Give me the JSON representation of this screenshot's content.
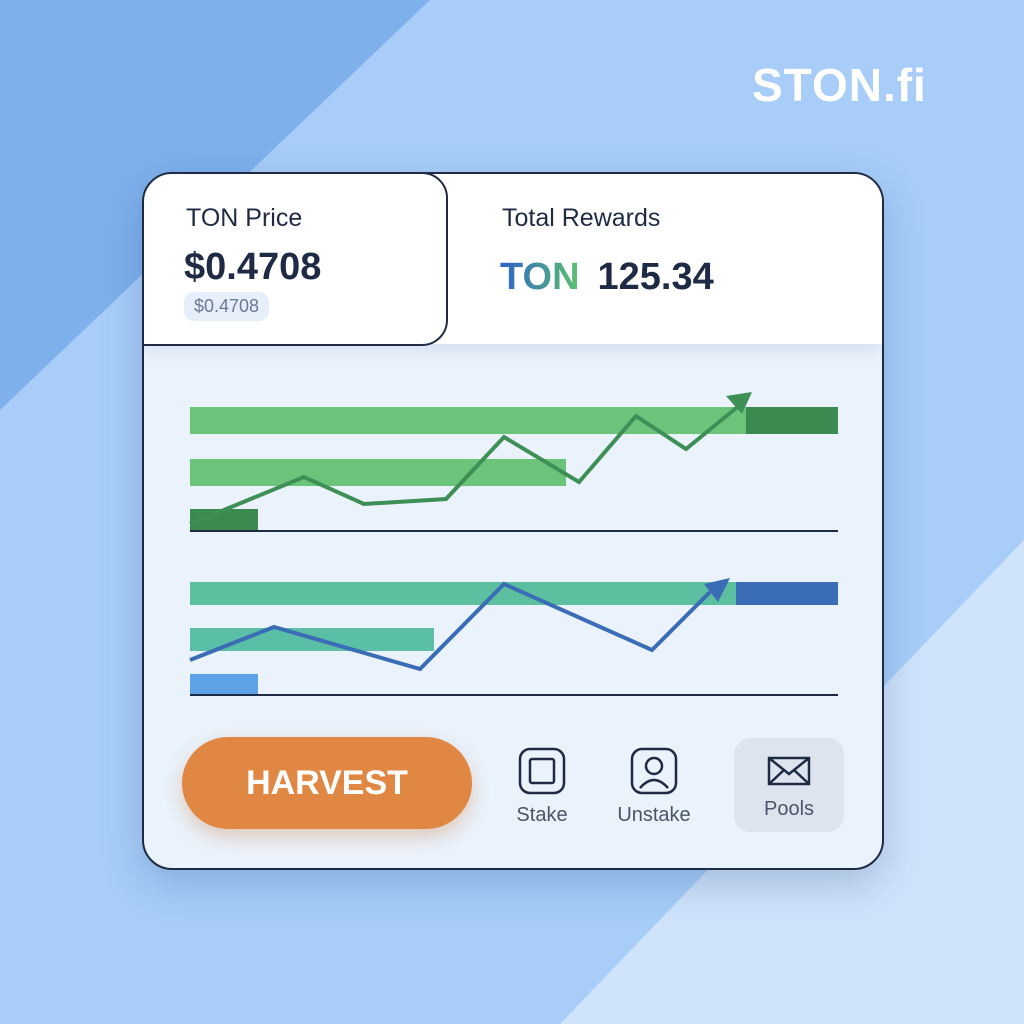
{
  "brand": "STON.fi",
  "price_card": {
    "label": "TON Price",
    "value": "$0.4708",
    "badge": "$0.4708"
  },
  "rewards_card": {
    "label": "Total Rewards",
    "token": "TON",
    "amount": "125.34"
  },
  "actions": {
    "harvest": "HARVEST",
    "items": [
      "Stake",
      "Unstake",
      "Pools"
    ]
  }
}
